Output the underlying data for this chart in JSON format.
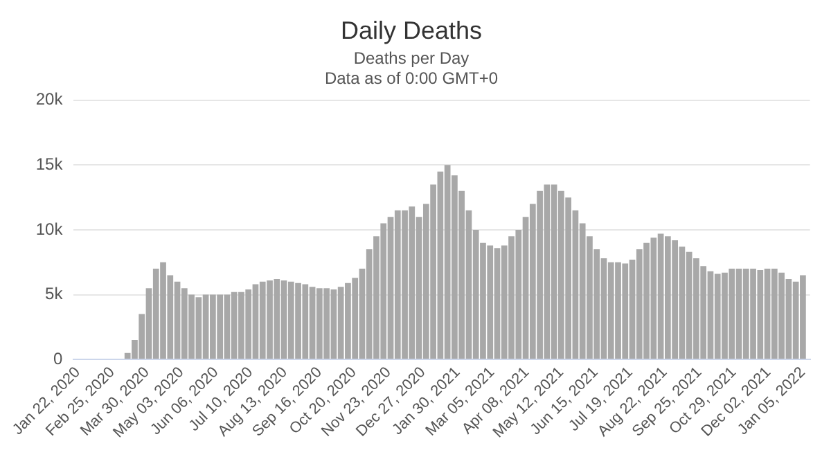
{
  "chart_data": {
    "type": "bar",
    "title": "Daily Deaths",
    "subtitle": "Deaths per Day\nData as of 0:00 GMT+0",
    "x": [
      "2020-01-22",
      "2020-01-29",
      "2020-02-05",
      "2020-02-12",
      "2020-02-19",
      "2020-02-26",
      "2020-03-04",
      "2020-03-11",
      "2020-03-18",
      "2020-03-25",
      "2020-04-01",
      "2020-04-08",
      "2020-04-15",
      "2020-04-22",
      "2020-04-29",
      "2020-05-06",
      "2020-05-13",
      "2020-05-20",
      "2020-05-27",
      "2020-06-03",
      "2020-06-10",
      "2020-06-17",
      "2020-06-24",
      "2020-07-01",
      "2020-07-08",
      "2020-07-15",
      "2020-07-22",
      "2020-07-29",
      "2020-08-05",
      "2020-08-12",
      "2020-08-19",
      "2020-08-26",
      "2020-09-02",
      "2020-09-09",
      "2020-09-16",
      "2020-09-23",
      "2020-09-30",
      "2020-10-07",
      "2020-10-14",
      "2020-10-21",
      "2020-10-28",
      "2020-11-04",
      "2020-11-11",
      "2020-11-18",
      "2020-11-25",
      "2020-12-02",
      "2020-12-09",
      "2020-12-16",
      "2020-12-23",
      "2020-12-30",
      "2021-01-06",
      "2021-01-13",
      "2021-01-20",
      "2021-01-27",
      "2021-02-03",
      "2021-02-10",
      "2021-02-17",
      "2021-02-24",
      "2021-03-03",
      "2021-03-10",
      "2021-03-17",
      "2021-03-24",
      "2021-03-31",
      "2021-04-07",
      "2021-04-14",
      "2021-04-21",
      "2021-04-28",
      "2021-05-05",
      "2021-05-12",
      "2021-05-19",
      "2021-05-26",
      "2021-06-02",
      "2021-06-09",
      "2021-06-16",
      "2021-06-23",
      "2021-06-30",
      "2021-07-07",
      "2021-07-14",
      "2021-07-21",
      "2021-07-28",
      "2021-08-04",
      "2021-08-11",
      "2021-08-18",
      "2021-08-25",
      "2021-09-01",
      "2021-09-08",
      "2021-09-15",
      "2021-09-22",
      "2021-09-29",
      "2021-10-06",
      "2021-10-13",
      "2021-10-20",
      "2021-10-27",
      "2021-11-03",
      "2021-11-10",
      "2021-11-17",
      "2021-11-24",
      "2021-12-01",
      "2021-12-08",
      "2021-12-15",
      "2021-12-22",
      "2021-12-29",
      "2022-01-05"
    ],
    "values": [
      0,
      0,
      0,
      0,
      0,
      0,
      0,
      500,
      1500,
      3500,
      5500,
      7000,
      7500,
      6500,
      6000,
      5500,
      5000,
      4800,
      5000,
      5000,
      5000,
      5000,
      5200,
      5200,
      5400,
      5800,
      6000,
      6100,
      6200,
      6100,
      6000,
      5900,
      5800,
      5600,
      5500,
      5500,
      5400,
      5600,
      5900,
      6300,
      7000,
      8500,
      9500,
      10500,
      11000,
      11500,
      11500,
      11800,
      11000,
      12000,
      13500,
      14500,
      15000,
      14200,
      13000,
      11500,
      10000,
      9000,
      8800,
      8600,
      8800,
      9500,
      10000,
      11000,
      12000,
      13000,
      13500,
      13500,
      13000,
      12500,
      11500,
      10500,
      9500,
      8500,
      7800,
      7500,
      7500,
      7400,
      7700,
      8500,
      9000,
      9400,
      9700,
      9500,
      9200,
      8700,
      8300,
      7800,
      7200,
      6800,
      6600,
      6700,
      7000,
      7000,
      7000,
      7000,
      6900,
      7000,
      7000,
      6700,
      6200,
      6000,
      6500
    ],
    "color": "#a8a8a8",
    "xlim": [
      "2020-01-18",
      "2022-01-12"
    ],
    "xticks": [
      {
        "value": "2020-01-22",
        "label": "Jan 22, 2020"
      },
      {
        "value": "2020-02-25",
        "label": "Feb 25, 2020"
      },
      {
        "value": "2020-03-30",
        "label": "Mar 30, 2020"
      },
      {
        "value": "2020-05-03",
        "label": "May 03, 2020"
      },
      {
        "value": "2020-06-06",
        "label": "Jun 06, 2020"
      },
      {
        "value": "2020-07-10",
        "label": "Jul 10, 2020"
      },
      {
        "value": "2020-08-13",
        "label": "Aug 13, 2020"
      },
      {
        "value": "2020-09-16",
        "label": "Sep 16, 2020"
      },
      {
        "value": "2020-10-20",
        "label": "Oct 20, 2020"
      },
      {
        "value": "2020-11-23",
        "label": "Nov 23, 2020"
      },
      {
        "value": "2020-12-27",
        "label": "Dec 27, 2020"
      },
      {
        "value": "2021-01-30",
        "label": "Jan 30, 2021"
      },
      {
        "value": "2021-03-05",
        "label": "Mar 05, 2021"
      },
      {
        "value": "2021-04-08",
        "label": "Apr 08, 2021"
      },
      {
        "value": "2021-05-12",
        "label": "May 12, 2021"
      },
      {
        "value": "2021-06-15",
        "label": "Jun 15, 2021"
      },
      {
        "value": "2021-07-19",
        "label": "Jul 19, 2021"
      },
      {
        "value": "2021-08-22",
        "label": "Aug 22, 2021"
      },
      {
        "value": "2021-09-25",
        "label": "Sep 25, 2021"
      },
      {
        "value": "2021-10-29",
        "label": "Oct 29, 2021"
      },
      {
        "value": "2021-12-02",
        "label": "Dec 02, 2021"
      },
      {
        "value": "2022-01-05",
        "label": "Jan 05, 2022"
      }
    ],
    "ylim": [
      0,
      20000
    ],
    "yticks": [
      0,
      {
        "value": 5000,
        "label": "5k"
      },
      {
        "value": 10000,
        "label": "10k"
      },
      {
        "value": 15000,
        "label": "15k"
      },
      {
        "value": 20000,
        "label": "20k"
      }
    ],
    "grid": "y",
    "legend": false
  }
}
